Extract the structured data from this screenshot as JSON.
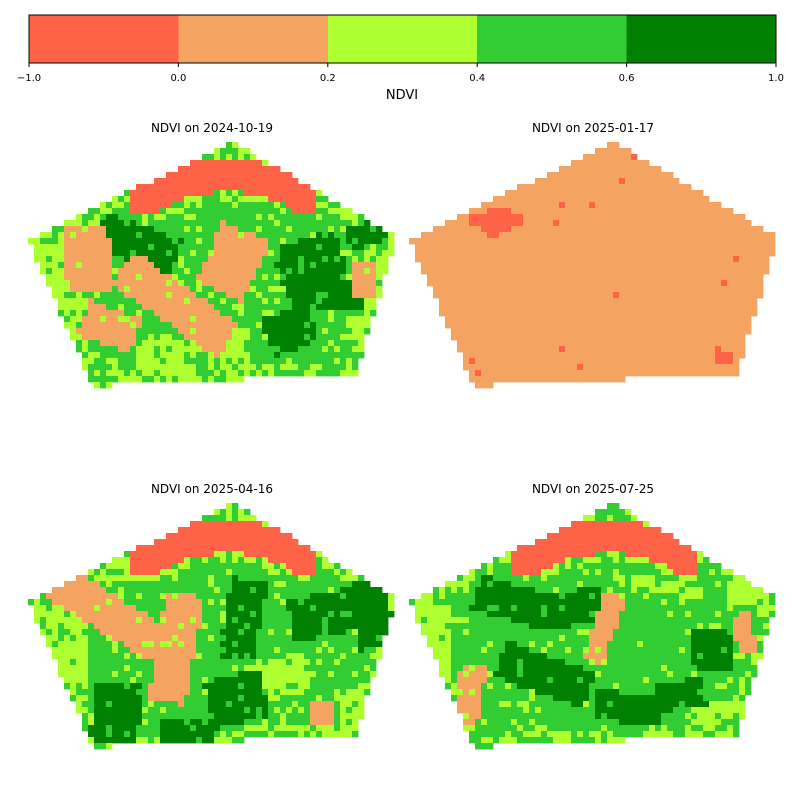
{
  "colorbar": {
    "label": "NDVI",
    "bounds": [
      -1.0,
      0.0,
      0.2,
      0.4,
      0.6,
      1.0
    ],
    "tick_labels": [
      "−1.0",
      "0.0",
      "0.2",
      "0.4",
      "0.6",
      "1.0"
    ],
    "colors": [
      "#ff6347",
      "#f4a460",
      "#adff2f",
      "#32cd32",
      "#008000"
    ]
  },
  "panels": [
    {
      "title": "NDVI on 2024-10-19",
      "date": "2024-10-19",
      "style": "autumn"
    },
    {
      "title": "NDVI on 2025-01-17",
      "date": "2025-01-17",
      "style": "winter"
    },
    {
      "title": "NDVI on 2025-04-16",
      "date": "2025-04-16",
      "style": "spring"
    },
    {
      "title": "NDVI on 2025-07-25",
      "date": "2025-07-25",
      "style": "summer"
    }
  ]
}
